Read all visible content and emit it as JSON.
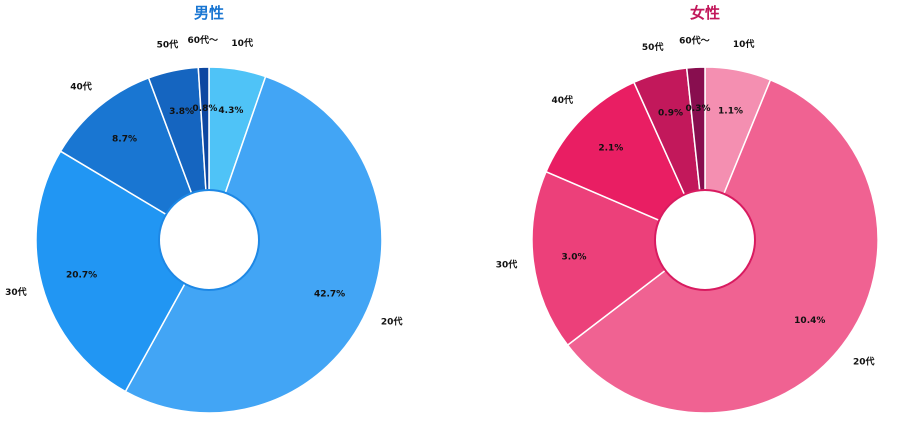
{
  "chart_data": [
    {
      "type": "pie",
      "title": "男性",
      "title_color": "#1976D2",
      "hole_stroke": "#1E88E5",
      "slices": [
        {
          "label": "10代",
          "pct_label": "4.3%",
          "value": 4.3,
          "color": "#4FC3F7"
        },
        {
          "label": "20代",
          "pct_label": "42.7%",
          "value": 42.7,
          "color": "#42A5F5"
        },
        {
          "label": "30代",
          "pct_label": "20.7%",
          "value": 20.7,
          "color": "#2196F3"
        },
        {
          "label": "40代",
          "pct_label": "8.7%",
          "value": 8.7,
          "color": "#1976D2"
        },
        {
          "label": "50代",
          "pct_label": "3.8%",
          "value": 3.8,
          "color": "#1565C0"
        },
        {
          "label": "60代〜",
          "pct_label": "0.8%",
          "value": 0.8,
          "color": "#0D47A1"
        }
      ]
    },
    {
      "type": "pie",
      "title": "女性",
      "title_color": "#C2185B",
      "hole_stroke": "#D81B60",
      "slices": [
        {
          "label": "10代",
          "pct_label": "1.1%",
          "value": 1.1,
          "color": "#F48FB1"
        },
        {
          "label": "20代",
          "pct_label": "10.4%",
          "value": 10.4,
          "color": "#F06292"
        },
        {
          "label": "30代",
          "pct_label": "3.0%",
          "value": 3.0,
          "color": "#EC407A"
        },
        {
          "label": "40代",
          "pct_label": "2.1%",
          "value": 2.1,
          "color": "#E91E63"
        },
        {
          "label": "50代",
          "pct_label": "0.9%",
          "value": 0.9,
          "color": "#C2185B"
        },
        {
          "label": "60代〜",
          "pct_label": "0.3%",
          "value": 0.3,
          "color": "#880E4F"
        }
      ]
    }
  ]
}
